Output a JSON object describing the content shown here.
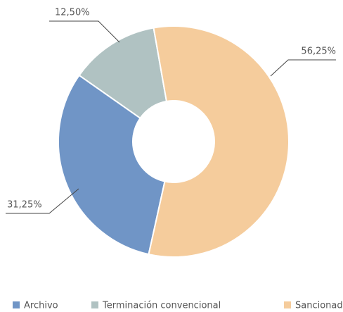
{
  "chart_data": {
    "type": "donut",
    "categories": [
      "Archivo",
      "Terminación convencional",
      "Sancionador"
    ],
    "values": [
      31.25,
      12.5,
      56.25
    ],
    "value_labels": [
      "31,25%",
      "12,50%",
      "56,25%"
    ],
    "colors": [
      "#7095c6",
      "#b0c2c2",
      "#f5cc9c"
    ],
    "legend": "bottom"
  }
}
